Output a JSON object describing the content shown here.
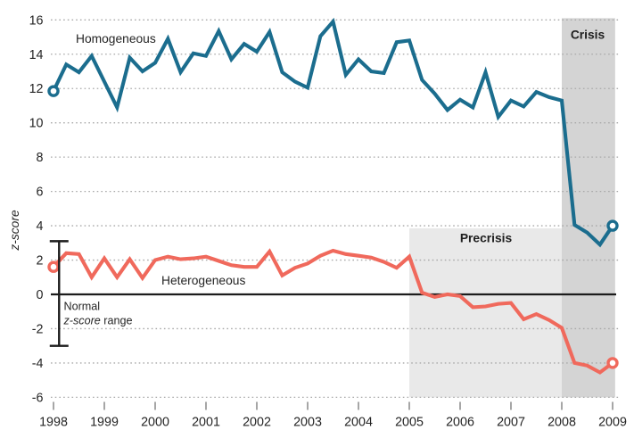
{
  "chart_data": {
    "type": "line",
    "title": "",
    "xlabel": "",
    "ylabel": "z-score",
    "xlim": [
      1997.95,
      2009.42
    ],
    "ylim": [
      -6,
      16
    ],
    "x_ticks": [
      1998,
      1999,
      2000,
      2001,
      2002,
      2003,
      2004,
      2005,
      2006,
      2007,
      2008,
      2009
    ],
    "y_ticks": [
      16,
      14,
      12,
      10,
      8,
      6,
      4,
      2,
      0,
      -2,
      -4,
      -6
    ],
    "grid": "horizontal dotted gridlines at even z-scores; solid black line at 0",
    "legend_position": "inline labels next to lines",
    "x_start": 1998,
    "x_step": 0.25,
    "series": [
      {
        "name": "Homogeneous",
        "color": "#1b6d8e",
        "markers": "open circle at first and last point",
        "values": [
          11.85,
          13.4,
          12.95,
          13.9,
          12.4,
          10.9,
          13.8,
          13.0,
          13.5,
          14.9,
          12.95,
          14.05,
          13.9,
          15.35,
          13.7,
          14.6,
          14.15,
          15.3,
          12.95,
          12.4,
          12.05,
          15.05,
          15.9,
          12.8,
          13.7,
          13.0,
          12.9,
          14.7,
          14.8,
          12.5,
          11.7,
          10.75,
          11.35,
          10.9,
          12.95,
          10.35,
          11.3,
          10.95,
          11.8,
          11.5,
          11.3,
          4.05,
          3.6,
          2.9,
          4.0
        ]
      },
      {
        "name": "Heterogeneous",
        "color": "#f0695c",
        "markers": "open circle at first and last point",
        "values": [
          1.6,
          2.4,
          2.35,
          1.0,
          2.1,
          1.0,
          2.05,
          0.95,
          2.0,
          2.2,
          2.05,
          2.1,
          2.2,
          1.95,
          1.7,
          1.6,
          1.6,
          2.5,
          1.1,
          1.55,
          1.8,
          2.25,
          2.55,
          2.35,
          2.25,
          2.15,
          1.9,
          1.55,
          2.2,
          0.1,
          -0.15,
          0.0,
          -0.1,
          -0.75,
          -0.7,
          -0.55,
          -0.5,
          -1.45,
          -1.15,
          -1.5,
          -1.95,
          -4.0,
          -4.15,
          -4.55,
          -4.0
        ]
      }
    ],
    "bands": [
      {
        "label": "Precrisis",
        "x_start": 2005.0,
        "x_end": 2008.0,
        "y_top": 3.85,
        "y_bottom": -6,
        "color": "#e9e9e9"
      },
      {
        "label": "Crisis",
        "x_start": 2008.0,
        "x_end": 2009.05,
        "y_top": 16.1,
        "y_bottom": -6,
        "color": "#d4d4d4"
      }
    ],
    "normal_range": {
      "x": 1998.11,
      "high": 3.1,
      "low": -3.0
    },
    "labels": {
      "homogeneous": "Homogeneous",
      "heterogeneous": "Heterogeneous",
      "precrisis": "Precrisis",
      "crisis": "Crisis",
      "normal_range_line1": "Normal",
      "normal_range_line2_italic": "z-score",
      "normal_range_line2_rest": " range",
      "y_axis_title": "z-score"
    },
    "colors": {
      "homogeneous_line": "#1b6d8e",
      "heterogeneous_line": "#f0695c",
      "precrisis_band": "#e9e9e9",
      "crisis_band": "#d4d4d4",
      "gridline": "#a8a8a8",
      "zero_line": "#1c1c1c",
      "tick": "#8f8f8f",
      "text": "#252525"
    }
  }
}
